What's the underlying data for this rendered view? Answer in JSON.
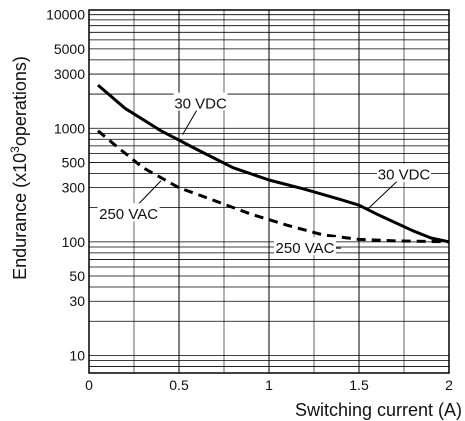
{
  "chart_data": {
    "type": "line",
    "title": "",
    "xlabel": "Switching current (A)",
    "ylabel_main": "Endurance (x10",
    "ylabel_sup": "3",
    "ylabel_end": "operations)",
    "x_scale": "linear",
    "y_scale": "log",
    "xlim": [
      0,
      2
    ],
    "ylim": [
      7,
      11000
    ],
    "grid": true,
    "x_ticks": [
      0,
      0.5,
      1,
      1.5,
      2
    ],
    "x_tick_labels": [
      "0",
      "0.5",
      "1",
      "1.5",
      "2"
    ],
    "y_ticks": [
      10,
      30,
      50,
      100,
      300,
      500,
      1000,
      3000,
      5000,
      10000
    ],
    "y_tick_labels": [
      "10",
      "30",
      "50",
      "100",
      "300",
      "500",
      "1000",
      "3000",
      "5000",
      "10000"
    ],
    "series": [
      {
        "name": "30 VDC",
        "line_style": "solid",
        "points": [
          [
            0.05,
            2400
          ],
          [
            0.2,
            1500
          ],
          [
            0.4,
            950
          ],
          [
            0.6,
            650
          ],
          [
            0.8,
            450
          ],
          [
            1.0,
            350
          ],
          [
            1.2,
            290
          ],
          [
            1.4,
            235
          ],
          [
            1.5,
            210
          ],
          [
            1.6,
            175
          ],
          [
            1.8,
            125
          ],
          [
            1.9,
            108
          ],
          [
            2.0,
            100
          ]
        ]
      },
      {
        "name": "250 VAC",
        "line_style": "dashed",
        "points": [
          [
            0.05,
            950
          ],
          [
            0.15,
            700
          ],
          [
            0.3,
            450
          ],
          [
            0.5,
            300
          ],
          [
            0.7,
            230
          ],
          [
            0.9,
            175
          ],
          [
            1.1,
            140
          ],
          [
            1.3,
            115
          ],
          [
            1.5,
            105
          ],
          [
            1.7,
            102
          ],
          [
            2.0,
            100
          ]
        ]
      }
    ],
    "annotations": [
      {
        "text": "30 VDC",
        "series": "30 VDC",
        "at": [
          0.62,
          1650
        ],
        "points_to": [
          0.52,
          880
        ]
      },
      {
        "text": "30 VDC",
        "series": "30 VDC",
        "at": [
          1.75,
          390
        ],
        "points_to": [
          1.55,
          195
        ]
      },
      {
        "text": "250 VAC",
        "series": "250 VAC",
        "at": [
          0.22,
          175
        ],
        "points_to": [
          0.4,
          345
        ]
      },
      {
        "text": "250 VAC",
        "series": "250 VAC",
        "at": [
          1.2,
          88
        ],
        "points_to": [
          1.4,
          88
        ]
      }
    ]
  }
}
